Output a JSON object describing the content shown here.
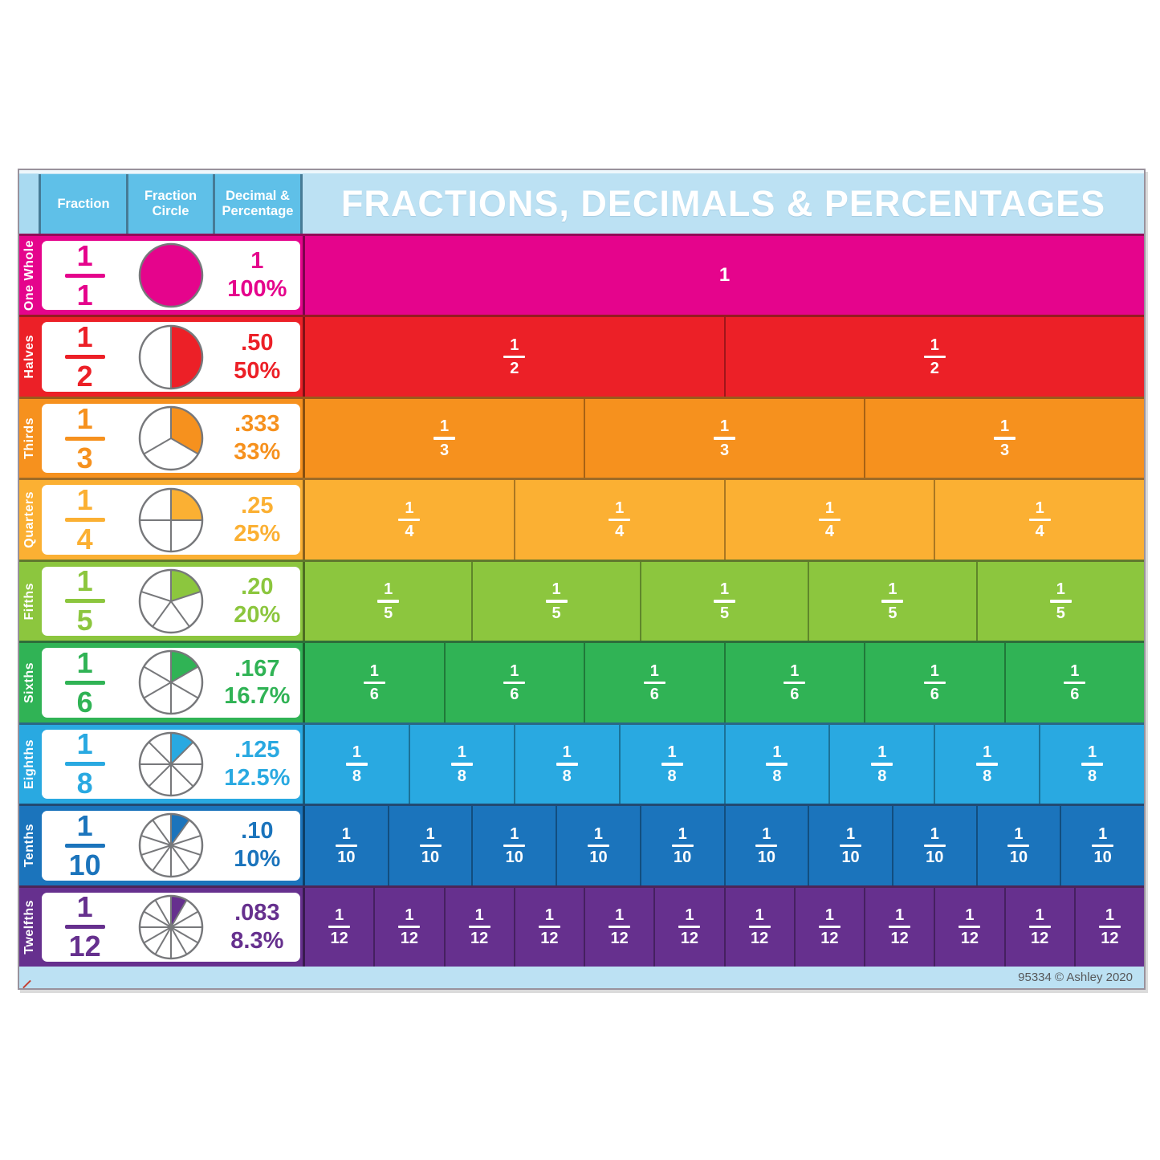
{
  "header": {
    "columns": [
      "Fraction",
      "Fraction Circle",
      "Decimal & Percentage"
    ],
    "title": "FRACTIONS, DECIMALS & PERCENTAGES"
  },
  "footer": {
    "credit": "95334 © Ashley 2020"
  },
  "colors": {
    "header_box_blue": "#5FC0E8",
    "band_light_blue": "#BCE1F3",
    "narrow_column_blue": "#A9DAF1",
    "circle_outline_gray": "#77787B",
    "footer_text_gray": "#57585A"
  },
  "rows": [
    {
      "label": "One Whole",
      "fraction": {
        "numerator": "1",
        "denominator": "1"
      },
      "decimal": "1",
      "percentage": "100%",
      "parts": 1,
      "color": "#E5048C",
      "bar_whole_label": "1"
    },
    {
      "label": "Halves",
      "fraction": {
        "numerator": "1",
        "denominator": "2"
      },
      "decimal": ".50",
      "percentage": "50%",
      "parts": 2,
      "color": "#EC2027"
    },
    {
      "label": "Thirds",
      "fraction": {
        "numerator": "1",
        "denominator": "3"
      },
      "decimal": ".333",
      "percentage": "33%",
      "parts": 3,
      "color": "#F6911E"
    },
    {
      "label": "Quarters",
      "fraction": {
        "numerator": "1",
        "denominator": "4"
      },
      "decimal": ".25",
      "percentage": "25%",
      "parts": 4,
      "color": "#FBB033"
    },
    {
      "label": "Fifths",
      "fraction": {
        "numerator": "1",
        "denominator": "5"
      },
      "decimal": ".20",
      "percentage": "20%",
      "parts": 5,
      "color": "#8CC63E"
    },
    {
      "label": "Sixths",
      "fraction": {
        "numerator": "1",
        "denominator": "6"
      },
      "decimal": ".167",
      "percentage": "16.7%",
      "parts": 6,
      "color": "#30B355"
    },
    {
      "label": "Eighths",
      "fraction": {
        "numerator": "1",
        "denominator": "8"
      },
      "decimal": ".125",
      "percentage": "12.5%",
      "parts": 8,
      "color": "#29A9E1"
    },
    {
      "label": "Tenths",
      "fraction": {
        "numerator": "1",
        "denominator": "10"
      },
      "decimal": ".10",
      "percentage": "10%",
      "parts": 10,
      "color": "#1B74BC"
    },
    {
      "label": "Twelfths",
      "fraction": {
        "numerator": "1",
        "denominator": "12"
      },
      "decimal": ".083",
      "percentage": "8.3%",
      "parts": 12,
      "color": "#66308E"
    }
  ]
}
